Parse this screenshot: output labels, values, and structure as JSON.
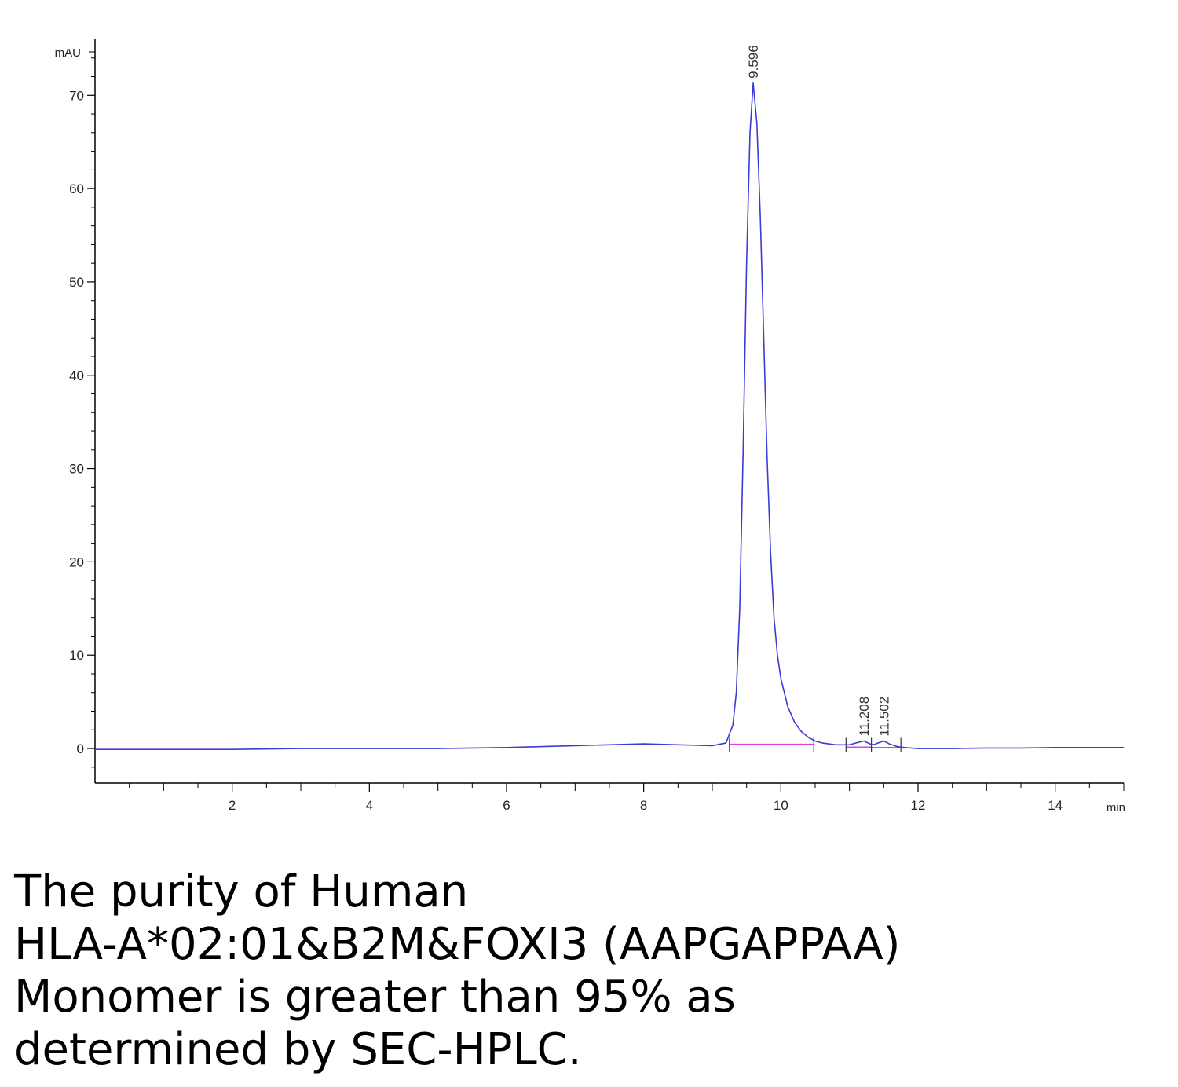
{
  "chart_data": {
    "type": "line",
    "title": "",
    "xlabel": "",
    "ylabel": "",
    "x_unit": "min",
    "y_unit": "mAU",
    "xlim": [
      0.0,
      15.0
    ],
    "ylim": [
      -3.7,
      76.0
    ],
    "x_ticks": [
      2,
      4,
      6,
      8,
      10,
      12,
      14
    ],
    "x_tick_labels": [
      "2",
      "4",
      "6",
      "8",
      "10",
      "12",
      "14"
    ],
    "y_ticks": [
      0,
      10,
      20,
      30,
      40,
      50,
      60,
      70
    ],
    "y_tick_labels": [
      "0",
      "10",
      "20",
      "30",
      "40",
      "50",
      "60",
      "70"
    ],
    "grid": false,
    "series": [
      {
        "color": "#3b3bd6",
        "x": [
          0.0,
          1.0,
          2.0,
          3.0,
          4.0,
          5.0,
          6.0,
          7.0,
          7.5,
          8.0,
          8.5,
          9.0,
          9.2,
          9.3,
          9.35,
          9.4,
          9.45,
          9.5,
          9.55,
          9.596,
          9.65,
          9.7,
          9.75,
          9.8,
          9.85,
          9.9,
          9.95,
          10.0,
          10.1,
          10.2,
          10.3,
          10.4,
          10.5,
          10.6,
          10.8,
          11.0,
          11.1,
          11.208,
          11.3,
          11.35,
          11.42,
          11.502,
          11.58,
          11.7,
          11.8,
          12.0,
          12.5,
          13.0,
          13.5,
          14.0,
          14.5,
          15.0
        ],
        "y": [
          -0.1,
          -0.1,
          -0.1,
          0.0,
          0.0,
          0.0,
          0.1,
          0.3,
          0.4,
          0.5,
          0.4,
          0.3,
          0.6,
          2.5,
          6.0,
          15.0,
          32.0,
          52.0,
          66.0,
          71.3,
          67.0,
          57.0,
          44.0,
          31.0,
          21.0,
          14.0,
          10.0,
          7.5,
          4.5,
          2.8,
          1.8,
          1.2,
          0.8,
          0.6,
          0.4,
          0.4,
          0.6,
          0.8,
          0.5,
          0.4,
          0.6,
          0.8,
          0.5,
          0.2,
          0.1,
          0.0,
          0.0,
          0.05,
          0.05,
          0.1,
          0.1,
          0.1
        ]
      }
    ],
    "baselines": [
      {
        "color": "#e040e0",
        "x": [
          9.25,
          10.48
        ],
        "y": [
          0.45,
          0.45
        ]
      },
      {
        "color": "#e040e0",
        "x": [
          10.95,
          11.32
        ],
        "y": [
          0.15,
          0.15
        ]
      },
      {
        "color": "#e040e0",
        "x": [
          11.32,
          11.75
        ],
        "y": [
          0.1,
          0.1
        ]
      }
    ],
    "peak_labels": [
      {
        "x": 9.596,
        "y": 71.3,
        "label": "9.596"
      },
      {
        "x": 11.208,
        "y": 0.8,
        "label": "11.208"
      },
      {
        "x": 11.502,
        "y": 0.8,
        "label": "11.502"
      }
    ],
    "integration_marks": [
      9.25,
      10.48,
      10.95,
      11.32,
      11.75
    ]
  },
  "caption": {
    "lines": [
      "The purity of Human",
      "HLA-A*02:01&B2M&FOXI3 (AAPGAPPAA)",
      "Monomer is greater than 95% as",
      "determined by SEC-HPLC."
    ]
  }
}
